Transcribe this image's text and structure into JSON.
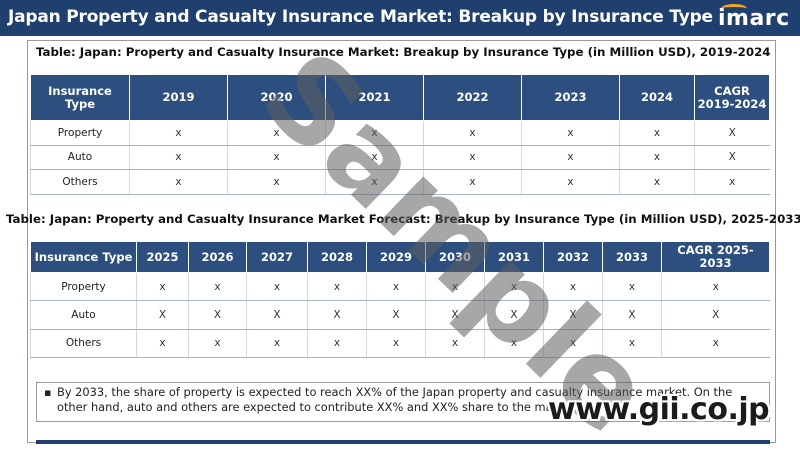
{
  "header": {
    "title": "Japan Property and Casualty Insurance Market: Breakup by Insurance Type",
    "logo_text": "imarc"
  },
  "colors": {
    "header_bg": "#1f3f6e",
    "table_header_bg": "#2c4f7f",
    "logo_accent": "#f5a623"
  },
  "table1": {
    "caption": "Table: Japan: Property and Casualty Insurance Market: Breakup by Insurance Type (in Million USD), 2019-2024",
    "columns": [
      "Insurance Type",
      "2019",
      "2020",
      "2021",
      "2022",
      "2023",
      "2024",
      "CAGR 2019-2024"
    ],
    "rows": [
      {
        "label": "Property",
        "values": [
          "x",
          "x",
          "x",
          "x",
          "x",
          "x",
          "X"
        ]
      },
      {
        "label": "Auto",
        "values": [
          "x",
          "x",
          "x",
          "x",
          "x",
          "x",
          "X"
        ]
      },
      {
        "label": "Others",
        "values": [
          "x",
          "x",
          "x",
          "x",
          "x",
          "x",
          "x"
        ]
      }
    ]
  },
  "table2": {
    "caption": "Table: Japan: Property and Casualty Insurance Market Forecast: Breakup by Insurance Type (in Million USD), 2025-2033",
    "columns": [
      "Insurance Type",
      "2025",
      "2026",
      "2027",
      "2028",
      "2029",
      "2030",
      "2031",
      "2032",
      "2033",
      "CAGR 2025-2033"
    ],
    "rows": [
      {
        "label": "Property",
        "values": [
          "x",
          "x",
          "x",
          "x",
          "x",
          "x",
          "x",
          "x",
          "x",
          "x"
        ]
      },
      {
        "label": "Auto",
        "values": [
          "X",
          "X",
          "X",
          "X",
          "X",
          "X",
          "X",
          "X",
          "X",
          "X"
        ]
      },
      {
        "label": "Others",
        "values": [
          "x",
          "x",
          "x",
          "x",
          "x",
          "x",
          "x",
          "x",
          "x",
          "x"
        ]
      }
    ]
  },
  "note": {
    "bullet": "▪",
    "text": "By 2033, the share of property is expected to reach XX% of the Japan property and casualty insurance market. On the other hand, auto and others are expected to contribute XX% and XX% share to the market."
  },
  "watermark": "Sample",
  "site_stamp": "www.gii.co.jp"
}
